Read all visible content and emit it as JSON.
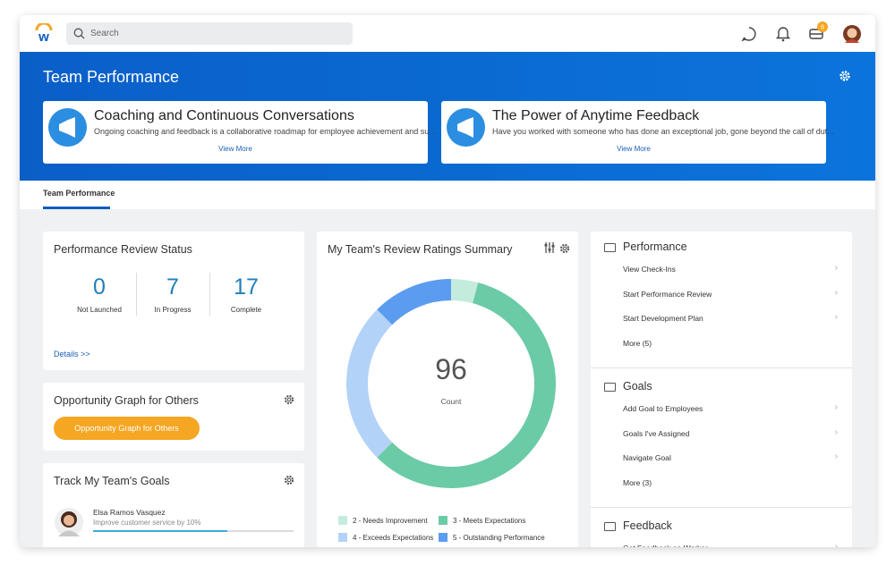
{
  "header": {
    "logo": "w",
    "search_placeholder": "Search",
    "inbox_badge": "8"
  },
  "banner": {
    "title": "Team Performance",
    "cards": [
      {
        "title": "Coaching and Continuous Conversations",
        "text": "Ongoing coaching and feedback is a collaborative roadmap for employee achievement and su...",
        "link": "View More"
      },
      {
        "title": "The Power of Anytime Feedback",
        "text": "Have you worked with someone who has done an exceptional job, gone beyond the call of dut...",
        "link": "View More"
      }
    ]
  },
  "tabs": [
    "Team Performance"
  ],
  "review_status": {
    "title": "Performance Review Status",
    "stats": [
      {
        "value": "0",
        "label": "Not Launched"
      },
      {
        "value": "7",
        "label": "In Progress"
      },
      {
        "value": "17",
        "label": "Complete"
      }
    ],
    "link": "Details >>"
  },
  "opportunity": {
    "title": "Opportunity Graph for Others",
    "button": "Opportunity Graph for Others"
  },
  "goals_card": {
    "title": "Track My Team's Goals",
    "person": "Elsa Ramos Vasquez",
    "goal": "Improve customer service by 10%",
    "progress": 67
  },
  "chart_data": {
    "type": "donut",
    "title": "My Team's Review Ratings Summary",
    "categories": [
      "2 - Needs Improvement",
      "3 - Meets Expectations",
      "4 - Exceeds Expectations",
      "5 - Outstanding Performance"
    ],
    "values": [
      4,
      56,
      24,
      12
    ],
    "colors": [
      "#c4ecdd",
      "#6bcba6",
      "#b3d2f7",
      "#5b9cf0"
    ],
    "total": 96,
    "total_label": "Count"
  },
  "menu": [
    {
      "title": "Performance",
      "items": [
        "View Check-Ins",
        "Start Performance Review",
        "Start Development Plan",
        "More (5)"
      ]
    },
    {
      "title": "Goals",
      "items": [
        "Add Goal to Employees",
        "Goals I've Assigned",
        "Navigate Goal",
        "More (3)"
      ]
    },
    {
      "title": "Feedback",
      "items": [
        "Get Feedback on Worker"
      ]
    }
  ]
}
